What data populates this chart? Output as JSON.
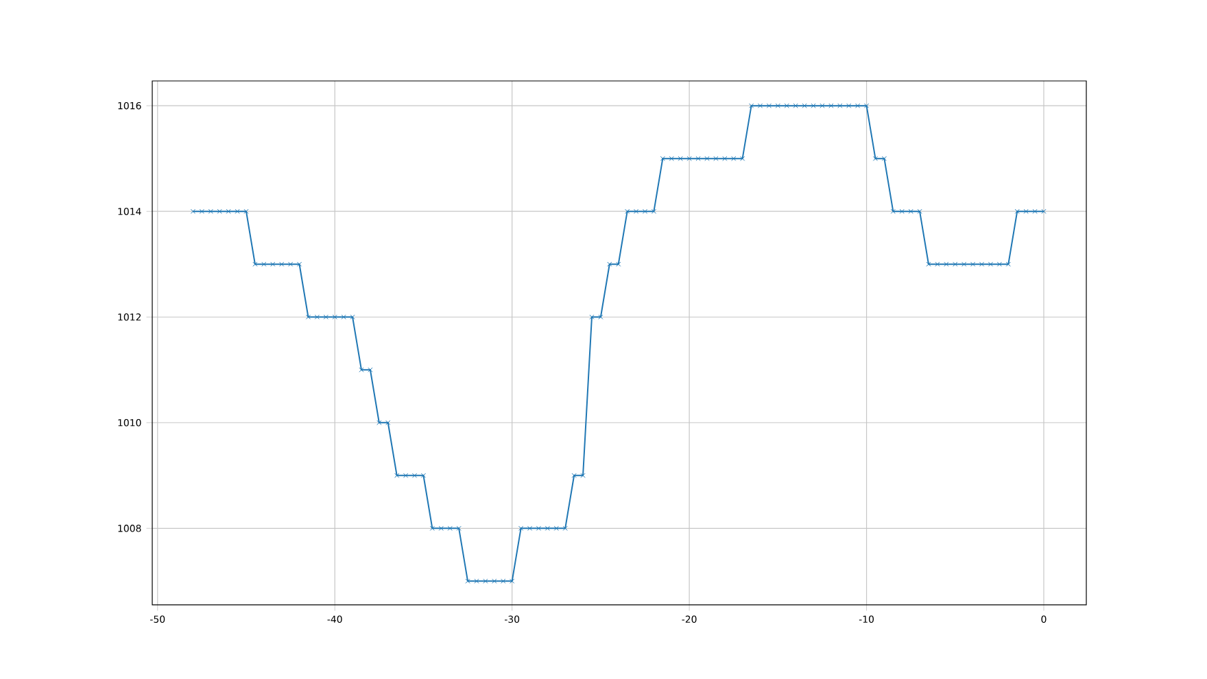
{
  "chart_data": {
    "type": "line",
    "x": [
      -48,
      -47.5,
      -47,
      -46.5,
      -46,
      -45.5,
      -45,
      -44.5,
      -44,
      -43.5,
      -43,
      -42.5,
      -42,
      -41.5,
      -41,
      -40.5,
      -40,
      -39.5,
      -39,
      -38.5,
      -38,
      -37.5,
      -37,
      -36.5,
      -36,
      -35.5,
      -35,
      -34.5,
      -34,
      -33.5,
      -33,
      -32.5,
      -32,
      -31.5,
      -31,
      -30.5,
      -30,
      -29.5,
      -29,
      -28.5,
      -28,
      -27.5,
      -27,
      -26.5,
      -26,
      -25.5,
      -25,
      -24.5,
      -24,
      -23.5,
      -23,
      -22.5,
      -22,
      -21.5,
      -21,
      -20.5,
      -20,
      -19.5,
      -19,
      -18.5,
      -18,
      -17.5,
      -17,
      -16.5,
      -16,
      -15.5,
      -15,
      -14.5,
      -14,
      -13.5,
      -13,
      -12.5,
      -12,
      -11.5,
      -11,
      -10.5,
      -10,
      -9.5,
      -9,
      -8.5,
      -8,
      -7.5,
      -7,
      -6.5,
      -6,
      -5.5,
      -5,
      -4.5,
      -4,
      -3.5,
      -3,
      -2.5,
      -2,
      -1.5,
      -1,
      -0.5,
      0
    ],
    "series": [
      {
        "color": "#1f77b4",
        "values": [
          1014,
          1014,
          1014,
          1014,
          1014,
          1014,
          1014,
          1013,
          1013,
          1013,
          1013,
          1013,
          1013,
          1012,
          1012,
          1012,
          1012,
          1012,
          1012,
          1011,
          1011,
          1010,
          1010,
          1009,
          1009,
          1009,
          1009,
          1008,
          1008,
          1008,
          1008,
          1007,
          1007,
          1007,
          1007,
          1007,
          1007,
          1008,
          1008,
          1008,
          1008,
          1008,
          1008,
          1009,
          1009,
          1012,
          1012,
          1013,
          1013,
          1014,
          1014,
          1014,
          1014,
          1015,
          1015,
          1015,
          1015,
          1015,
          1015,
          1015,
          1015,
          1015,
          1015,
          1016,
          1016,
          1016,
          1016,
          1016,
          1016,
          1016,
          1016,
          1016,
          1016,
          1016,
          1016,
          1016,
          1016,
          1015,
          1015,
          1014,
          1014,
          1014,
          1014,
          1013,
          1013,
          1013,
          1013,
          1013,
          1013,
          1013,
          1013,
          1013,
          1013,
          1014,
          1014,
          1014,
          1014
        ]
      }
    ],
    "xlim": [
      -50.3,
      2.4
    ],
    "ylim": [
      1006.55,
      1016.47
    ],
    "xticks": [
      -50,
      -40,
      -30,
      -20,
      -10,
      0
    ],
    "yticks": [
      1008,
      1010,
      1012,
      1014,
      1016
    ],
    "grid": true,
    "marker": "cross",
    "line_style": "solid"
  }
}
